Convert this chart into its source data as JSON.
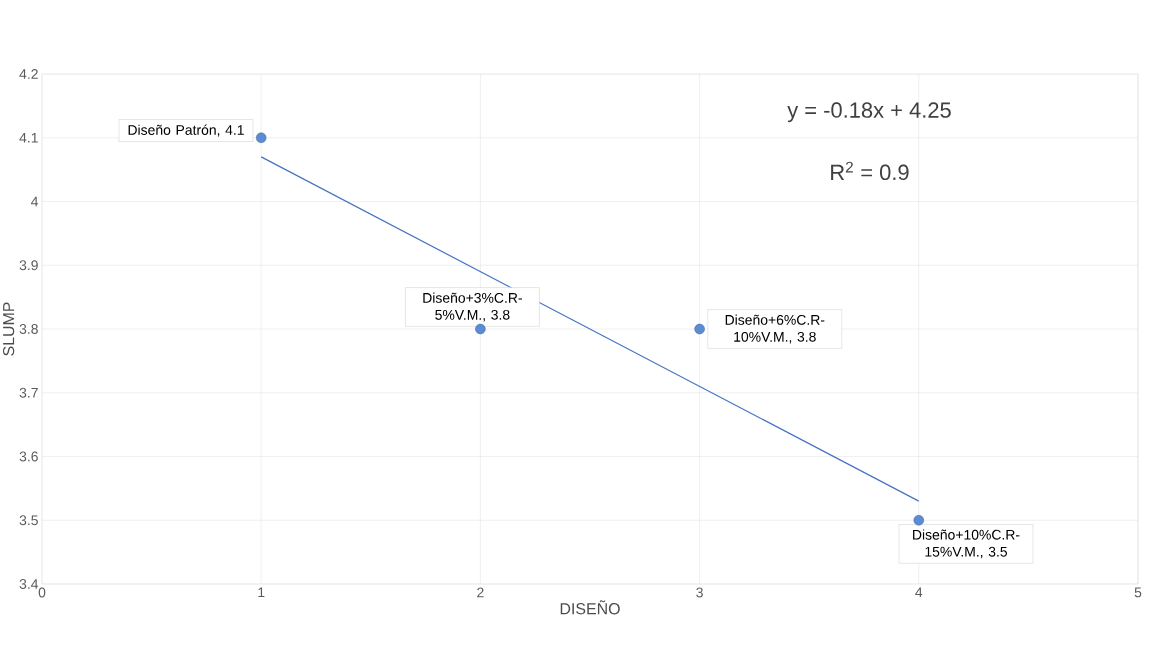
{
  "chart_data": {
    "type": "scatter",
    "xlabel": "DISEÑO",
    "ylabel": "SLUMP",
    "xlim": [
      0,
      5
    ],
    "xticks": [
      0,
      1,
      2,
      3,
      4,
      5
    ],
    "ylim": [
      3.4,
      4.2
    ],
    "yticks": [
      3.4,
      3.5,
      3.6,
      3.7,
      3.8,
      3.9,
      4,
      4.1,
      4.2
    ],
    "grid": true,
    "marker": "circle",
    "series": [
      {
        "color": "#5b8bd0",
        "x": [
          1,
          2,
          3,
          4
        ],
        "values": [
          4.1,
          3.8,
          3.8,
          3.5
        ],
        "value_labels": [
          "Diseño Patrón, 4.1",
          "Diseño+3%C.R-5%V.M., 3.8",
          "Diseño+6%C.R-10%V.M., 3.8",
          "Diseño+10%C.R-15%V.M., 3.5"
        ]
      },
      {
        "type": "line",
        "marker": "none",
        "color": "#4472c4",
        "x": [
          1,
          4
        ],
        "values": [
          4.07,
          3.53
        ]
      }
    ],
    "annotations": [
      "y = -0.18x + 4.25",
      "R$^{2}$ = 0.9"
    ]
  }
}
